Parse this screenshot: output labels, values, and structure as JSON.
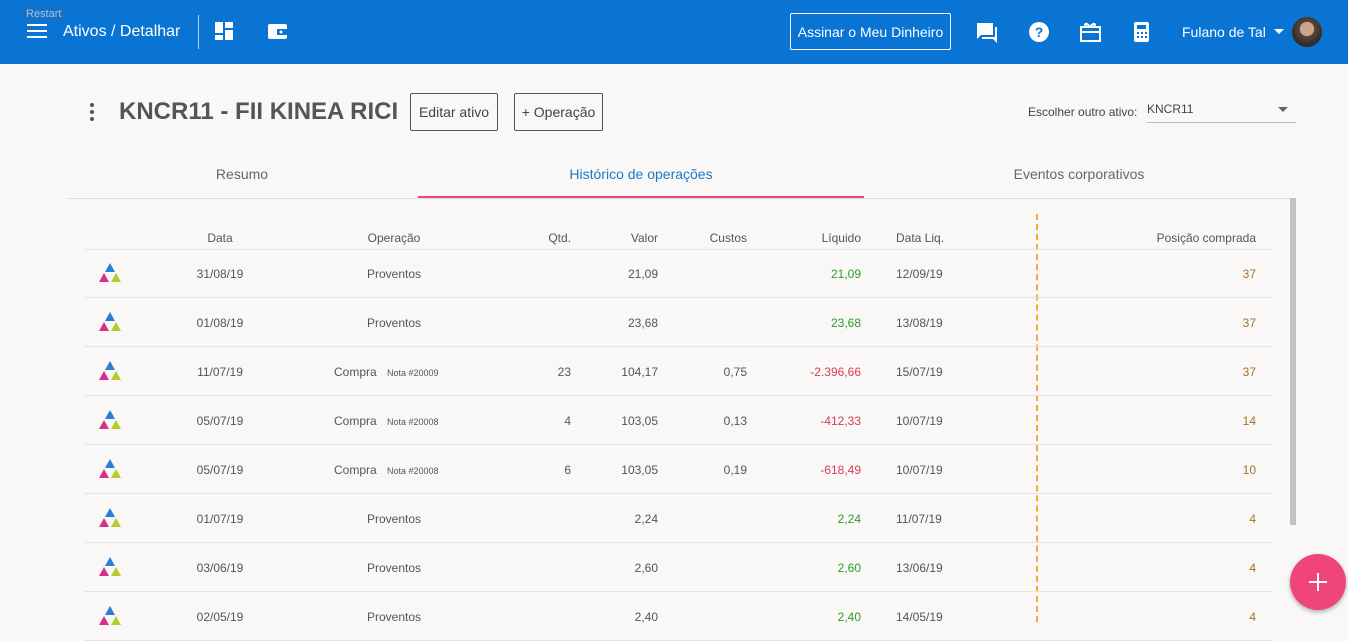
{
  "tooltip": "Restart",
  "header": {
    "title": "Ativos / Detalhar",
    "subscribe": "Assinar o Meu Dinheiro",
    "user": "Fulano de Tal"
  },
  "asset": {
    "title": "KNCR11 - FII KINEA RICI",
    "edit": "Editar ativo",
    "add": "+ Operação",
    "choose_label": "Escolher outro ativo:",
    "choose_value": "KNCR11"
  },
  "tabs": [
    "Resumo",
    "Histórico de operações",
    "Eventos corporativos"
  ],
  "table": {
    "headers": [
      "Data",
      "Operação",
      "Qtd.",
      "Valor",
      "Custos",
      "Líquido",
      "Data Liq.",
      "Posição comprada"
    ],
    "rows": [
      {
        "date": "31/08/19",
        "op": "Proventos",
        "valor": "21,09",
        "liquido": "21,09",
        "data_liq": "12/09/19",
        "posicao": "37"
      },
      {
        "date": "01/08/19",
        "op": "Proventos",
        "valor": "23,68",
        "liquido": "23,68",
        "data_liq": "13/08/19",
        "posicao": "37"
      },
      {
        "date": "11/07/19",
        "op": "Compra",
        "note": "Nota #20009",
        "qtd": "23",
        "valor": "104,17",
        "custos": "0,75",
        "liquido": "-2.396,66",
        "data_liq": "15/07/19",
        "posicao": "37"
      },
      {
        "date": "05/07/19",
        "op": "Compra",
        "note": "Nota #20008",
        "qtd": "4",
        "valor": "103,05",
        "custos": "0,13",
        "liquido": "-412,33",
        "data_liq": "10/07/19",
        "posicao": "14"
      },
      {
        "date": "05/07/19",
        "op": "Compra",
        "note": "Nota #20008",
        "qtd": "6",
        "valor": "103,05",
        "custos": "0,19",
        "liquido": "-618,49",
        "data_liq": "10/07/19",
        "posicao": "10"
      },
      {
        "date": "01/07/19",
        "op": "Proventos",
        "valor": "2,24",
        "liquido": "2,24",
        "data_liq": "11/07/19",
        "posicao": "4"
      },
      {
        "date": "03/06/19",
        "op": "Proventos",
        "valor": "2,60",
        "liquido": "2,60",
        "data_liq": "13/06/19",
        "posicao": "4"
      },
      {
        "date": "02/05/19",
        "op": "Proventos",
        "valor": "2,40",
        "liquido": "2,40",
        "data_liq": "14/05/19",
        "posicao": "4"
      }
    ]
  }
}
